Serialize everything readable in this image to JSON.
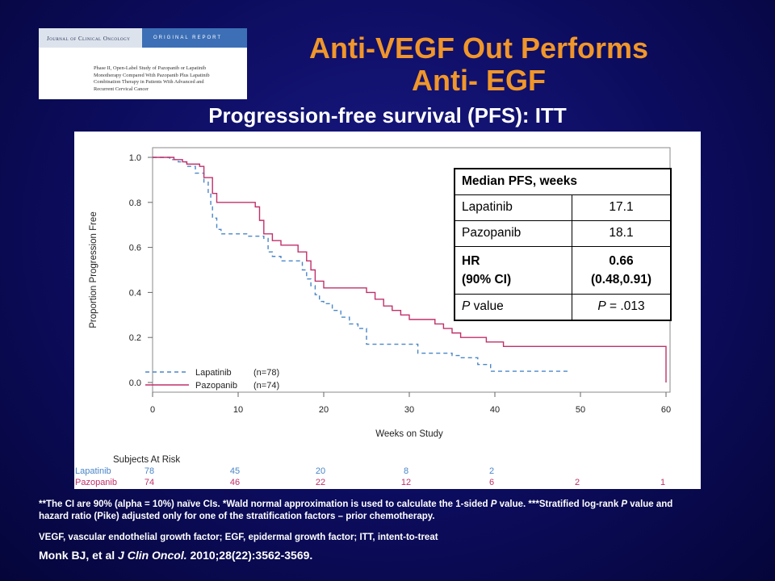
{
  "journal": {
    "name": "Journal of Clinical Oncology",
    "tag": "ORIGINAL REPORT",
    "article_lines": [
      "Phase II, Open-Label Study of Pazopanib or Lapatinib",
      "Monotherapy Compared With Pazopanib Plus Lapatinib",
      "Combination Therapy in Patients With Advanced and",
      "Recurrent Cervical Cancer"
    ]
  },
  "title_line1": "Anti-VEGF Out Performs",
  "title_line2": "Anti- EGF",
  "subtitle": "Progression-free survival (PFS): ITT",
  "colors": {
    "lapatinib": "#4a86c8",
    "pazopanib": "#c0306a",
    "title": "#f0962a",
    "background": "#0c0c5e"
  },
  "chart_data": {
    "type": "line",
    "step": true,
    "xlabel": "Weeks on Study",
    "ylabel": "Proportion Progression Free",
    "xlim": [
      0,
      60
    ],
    "ylim": [
      0,
      1
    ],
    "xticks": [
      0,
      10,
      20,
      30,
      40,
      50,
      60
    ],
    "yticks": [
      "0.0",
      "0.2",
      "0.4",
      "0.6",
      "0.8",
      "1.0"
    ],
    "grid": false,
    "legend_position": "bottom-left",
    "series": [
      {
        "name": "Lapatinib",
        "n_label": "(n=78)",
        "style": "dashed",
        "points": [
          [
            0,
            1.0
          ],
          [
            1.5,
            1.0
          ],
          [
            2,
            0.99
          ],
          [
            3,
            0.98
          ],
          [
            4,
            0.96
          ],
          [
            5,
            0.93
          ],
          [
            6,
            0.89
          ],
          [
            6.5,
            0.84
          ],
          [
            6.8,
            0.78
          ],
          [
            7,
            0.73
          ],
          [
            7.5,
            0.68
          ],
          [
            8,
            0.66
          ],
          [
            10,
            0.66
          ],
          [
            11,
            0.65
          ],
          [
            12,
            0.65
          ],
          [
            13,
            0.64
          ],
          [
            13.5,
            0.58
          ],
          [
            14,
            0.56
          ],
          [
            15,
            0.54
          ],
          [
            17,
            0.54
          ],
          [
            17.5,
            0.5
          ],
          [
            18,
            0.46
          ],
          [
            18.5,
            0.43
          ],
          [
            19,
            0.39
          ],
          [
            19.5,
            0.36
          ],
          [
            20,
            0.35
          ],
          [
            21,
            0.32
          ],
          [
            22,
            0.29
          ],
          [
            23,
            0.26
          ],
          [
            24,
            0.24
          ],
          [
            25,
            0.17
          ],
          [
            30,
            0.17
          ],
          [
            31,
            0.13
          ],
          [
            34,
            0.13
          ],
          [
            35,
            0.12
          ],
          [
            36,
            0.11
          ],
          [
            38,
            0.08
          ],
          [
            39,
            0.08
          ],
          [
            39.5,
            0.05
          ],
          [
            48.5,
            0.05
          ]
        ]
      },
      {
        "name": "Pazopanib",
        "n_label": "(n=74)",
        "style": "solid",
        "points": [
          [
            0,
            1.0
          ],
          [
            2,
            1.0
          ],
          [
            2.5,
            0.99
          ],
          [
            3.5,
            0.98
          ],
          [
            4,
            0.97
          ],
          [
            5.5,
            0.96
          ],
          [
            6,
            0.91
          ],
          [
            7,
            0.84
          ],
          [
            7.5,
            0.8
          ],
          [
            11,
            0.8
          ],
          [
            12,
            0.78
          ],
          [
            12.5,
            0.72
          ],
          [
            13,
            0.66
          ],
          [
            14,
            0.63
          ],
          [
            15,
            0.61
          ],
          [
            16,
            0.61
          ],
          [
            17,
            0.58
          ],
          [
            18,
            0.54
          ],
          [
            18.5,
            0.5
          ],
          [
            19,
            0.45
          ],
          [
            20,
            0.42
          ],
          [
            24,
            0.42
          ],
          [
            25,
            0.4
          ],
          [
            26,
            0.37
          ],
          [
            27,
            0.34
          ],
          [
            28,
            0.32
          ],
          [
            29,
            0.3
          ],
          [
            30,
            0.28
          ],
          [
            33,
            0.26
          ],
          [
            34,
            0.24
          ],
          [
            35,
            0.22
          ],
          [
            36,
            0.2
          ],
          [
            38,
            0.2
          ],
          [
            39,
            0.18
          ],
          [
            40,
            0.18
          ],
          [
            41,
            0.16
          ],
          [
            60,
            0.16
          ],
          [
            60,
            0.0
          ]
        ]
      }
    ],
    "risk_table": {
      "header": "Subjects At Risk",
      "times": [
        0,
        10,
        20,
        30,
        40,
        50,
        60
      ],
      "rows": [
        {
          "name": "Lapatinib",
          "counts": [
            "78",
            "45",
            "20",
            "8",
            "2",
            "",
            ""
          ]
        },
        {
          "name": "Pazopanib",
          "counts": [
            "74",
            "46",
            "22",
            "12",
            "6",
            "2",
            "1"
          ]
        }
      ]
    }
  },
  "stats_table": {
    "header": "Median PFS, weeks",
    "rows": [
      {
        "label": "Lapatinib",
        "value": "17.1"
      },
      {
        "label": "Pazopanib",
        "value": "18.1"
      }
    ],
    "hr_label_line1": "HR",
    "hr_label_line2": "(90% CI)",
    "hr_value_line1": "0.66",
    "hr_value_line2": "(0.48,0.91)",
    "p_label_italic": "P",
    "p_label_rest": " value",
    "p_value_italic": "P",
    "p_value_rest": " = .013"
  },
  "footnote1_part1": "**The CI are 90% (alpha = 10%) naïve CIs. *Wald normal approximation is used to calculate the 1-sided ",
  "footnote1_italic": "P",
  "footnote1_part2": " value. ***Stratified log-rank ",
  "footnote1_italic2": "P",
  "footnote1_part3": " value and hazard ratio (Pike) adjusted only for one of the stratification factors – prior chemotherapy.",
  "footnote2": "VEGF, vascular endothelial growth factor; EGF, epidermal growth factor; ITT, intent-to-treat",
  "citation_part1": "Monk BJ, et al ",
  "citation_italic": "J Clin Oncol.",
  "citation_part2": " 2010;28(22):3562-3569."
}
